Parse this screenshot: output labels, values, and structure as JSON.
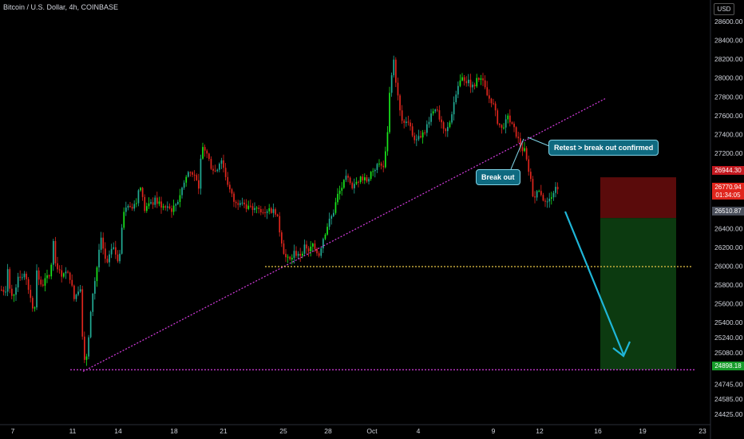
{
  "header": {
    "title": "Bitcoin / U.S. Dollar, 4h, COINBASE",
    "currency": "USD"
  },
  "annotations": {
    "break_out": "Break out",
    "retest": "Retest > break out confirmed"
  },
  "price_tags": {
    "stop": "26944.30",
    "current": "26770.94",
    "countdown": "01:34:05",
    "entry": "26510.87",
    "target": "24898.18"
  },
  "colors": {
    "bull": "#22ab94",
    "bull_bright": "#19e61c",
    "bear": "#e0261d",
    "trendline": "#d63ce0",
    "support": "#e8c547",
    "arrow": "#1fb6d8",
    "stop_zone": "#5a0b0b",
    "profit_zone": "#0c3a10"
  },
  "chart_data": {
    "type": "candlestick",
    "y_axis": {
      "ticks": [
        24425.0,
        24585.0,
        24745.0,
        24898.18,
        25080.0,
        25240.0,
        25400.0,
        25600.0,
        25800.0,
        26000.0,
        26200.0,
        26400.0,
        26600.0,
        26800.0,
        27000.0,
        27200.0,
        27400.0,
        27600.0,
        27800.0,
        28000.0,
        28200.0,
        28400.0,
        28600.0
      ],
      "tick_labels": [
        "24425.00",
        "24585.00",
        "24745.00",
        "",
        "25080.00",
        "25240.00",
        "25400.00",
        "25600.00",
        "25800.00",
        "26000.00",
        "26200.00",
        "26400.00",
        "26600.00",
        "",
        "27000.00",
        "27200.00",
        "27400.00",
        "27600.00",
        "27800.00",
        "28000.00",
        "28200.00",
        "28400.00",
        "28600.00"
      ]
    },
    "x_axis": {
      "ticks": [
        "7",
        "11",
        "14",
        "18",
        "21",
        "25",
        "28",
        "Oct",
        "4",
        "9",
        "12",
        "16",
        "19",
        "23"
      ]
    },
    "price_path": [
      [
        0,
        25750
      ],
      [
        6,
        25740
      ],
      [
        9,
        26000
      ],
      [
        12,
        25700
      ],
      [
        17,
        25720
      ],
      [
        22,
        25900
      ],
      [
        30,
        25900
      ],
      [
        38,
        25650
      ],
      [
        42,
        25500
      ],
      [
        45,
        25950
      ],
      [
        48,
        25850
      ],
      [
        52,
        25780
      ],
      [
        56,
        25900
      ],
      [
        60,
        25850
      ],
      [
        63,
        25990
      ],
      [
        66,
        26250
      ],
      [
        68,
        26050
      ],
      [
        71,
        26000
      ],
      [
        75,
        25900
      ],
      [
        79,
        25940
      ],
      [
        83,
        25920
      ],
      [
        87,
        25880
      ],
      [
        92,
        25650
      ],
      [
        97,
        25740
      ],
      [
        101,
        25810
      ],
      [
        103,
        25050
      ],
      [
        108,
        25020
      ],
      [
        115,
        25700
      ],
      [
        120,
        25950
      ],
      [
        125,
        26300
      ],
      [
        133,
        26000
      ],
      [
        140,
        26200
      ],
      [
        148,
        26050
      ],
      [
        155,
        26650
      ],
      [
        162,
        26600
      ],
      [
        170,
        26700
      ],
      [
        175,
        26850
      ],
      [
        180,
        26600
      ],
      [
        187,
        26650
      ],
      [
        194,
        26700
      ],
      [
        205,
        26620
      ],
      [
        215,
        26600
      ],
      [
        222,
        26700
      ],
      [
        228,
        26850
      ],
      [
        235,
        27000
      ],
      [
        242,
        27000
      ],
      [
        248,
        26800
      ],
      [
        252,
        27300
      ],
      [
        258,
        27200
      ],
      [
        264,
        27050
      ],
      [
        270,
        27000
      ],
      [
        276,
        27150
      ],
      [
        282,
        26950
      ],
      [
        288,
        26780
      ],
      [
        294,
        26650
      ],
      [
        300,
        26700
      ],
      [
        306,
        26650
      ],
      [
        312,
        26620
      ],
      [
        320,
        26600
      ],
      [
        328,
        26600
      ],
      [
        336,
        26600
      ],
      [
        345,
        26580
      ],
      [
        350,
        26350
      ],
      [
        356,
        26100
      ],
      [
        362,
        26050
      ],
      [
        368,
        26150
      ],
      [
        374,
        26100
      ],
      [
        380,
        26200
      ],
      [
        386,
        26150
      ],
      [
        392,
        26250
      ],
      [
        398,
        26100
      ],
      [
        404,
        26300
      ],
      [
        410,
        26450
      ],
      [
        416,
        26550
      ],
      [
        422,
        26750
      ],
      [
        428,
        26850
      ],
      [
        434,
        26950
      ],
      [
        440,
        26800
      ],
      [
        446,
        26900
      ],
      [
        452,
        26950
      ],
      [
        458,
        26900
      ],
      [
        464,
        27000
      ],
      [
        470,
        27050
      ],
      [
        476,
        27100
      ],
      [
        480,
        27050
      ],
      [
        484,
        27350
      ],
      [
        488,
        27950
      ],
      [
        492,
        28200
      ],
      [
        496,
        27900
      ],
      [
        500,
        27650
      ],
      [
        504,
        27500
      ],
      [
        508,
        27550
      ],
      [
        514,
        27450
      ],
      [
        520,
        27300
      ],
      [
        526,
        27400
      ],
      [
        532,
        27450
      ],
      [
        538,
        27600
      ],
      [
        544,
        27700
      ],
      [
        550,
        27550
      ],
      [
        556,
        27400
      ],
      [
        562,
        27500
      ],
      [
        568,
        27750
      ],
      [
        574,
        27950
      ],
      [
        580,
        28000
      ],
      [
        586,
        27950
      ],
      [
        592,
        27900
      ],
      [
        598,
        28000
      ],
      [
        604,
        27950
      ],
      [
        610,
        27800
      ],
      [
        616,
        27750
      ],
      [
        622,
        27550
      ],
      [
        628,
        27450
      ],
      [
        634,
        27600
      ],
      [
        640,
        27500
      ],
      [
        646,
        27400
      ],
      [
        652,
        27250
      ],
      [
        657,
        27220
      ],
      [
        660,
        27050
      ],
      [
        664,
        26900
      ],
      [
        668,
        26700
      ],
      [
        672,
        26780
      ],
      [
        676,
        26800
      ],
      [
        680,
        26700
      ],
      [
        684,
        26650
      ],
      [
        688,
        26730
      ],
      [
        692,
        26800
      ],
      [
        696,
        26820
      ],
      [
        700,
        26770
      ]
    ],
    "trendline": {
      "from": [
        "Sep 11",
        24880
      ],
      "to": [
        "Oct 15",
        27780
      ]
    },
    "support_line": 25995,
    "target_line": 24898.18,
    "short_position": {
      "entry": 26510.87,
      "stop": 26944.3,
      "target": 24898.18
    }
  }
}
